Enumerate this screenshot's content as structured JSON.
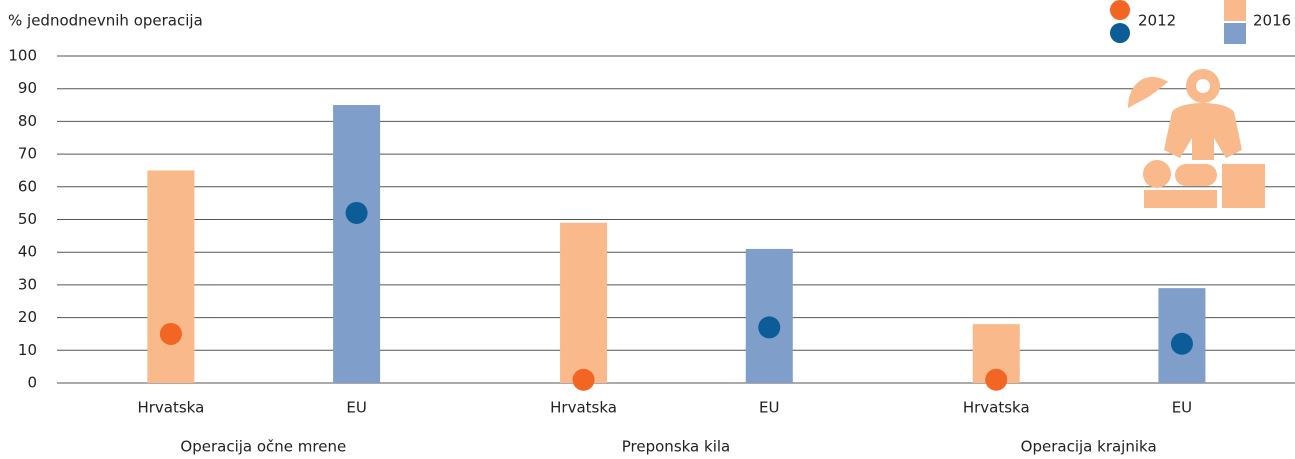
{
  "chart_data": {
    "type": "bar",
    "y_label": "% jednodnevnih operacija",
    "groups": [
      "Operacija očne mrene",
      "Preponska kila",
      "Operacija krajnika"
    ],
    "categories": [
      "Hrvatska",
      "EU",
      "Hrvatska",
      "EU",
      "Hrvatska",
      "EU"
    ],
    "series": [
      {
        "name": "2016",
        "type": "bar",
        "colors": [
          "#f9b98a",
          "#7f9ec9"
        ],
        "values": [
          65,
          85,
          49,
          41,
          18,
          29
        ]
      },
      {
        "name": "2012",
        "type": "scatter",
        "colors": [
          "#f26522",
          "#0b5c97"
        ],
        "values": [
          15,
          52,
          1,
          17,
          1,
          12
        ]
      }
    ],
    "ylim": [
      0,
      100
    ],
    "yticks": [
      0,
      10,
      20,
      30,
      40,
      50,
      60,
      70,
      80,
      90,
      100
    ],
    "grid": true
  }
}
